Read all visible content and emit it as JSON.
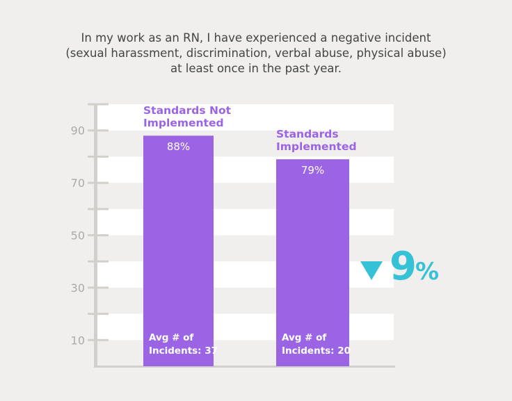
{
  "chart_data": {
    "type": "bar",
    "title_lines": [
      "In my work as an RN, I have experienced a negative incident",
      "(sexual harassment, discrimination, verbal abuse, physical abuse)",
      "at least once in the past year."
    ],
    "categories": [
      "Standards Not Implemented",
      "Standards Implemented"
    ],
    "category_label_lines": [
      [
        "Standards Not",
        "Implemented"
      ],
      [
        "Standards",
        "Implemented"
      ]
    ],
    "values": [
      88,
      79
    ],
    "value_labels": [
      "88%",
      "79%"
    ],
    "avg_incidents_lines": [
      [
        "Avg # of",
        "Incidents: 37"
      ],
      [
        "Avg # of",
        "Incidents: 20"
      ]
    ],
    "ylim": [
      0,
      100
    ],
    "yticks": [
      10,
      30,
      50,
      70,
      90
    ],
    "grid": "alternating horizontal bands",
    "annotation": {
      "icon": "triangle-down-icon",
      "value": "9",
      "unit": "%"
    },
    "colors": {
      "bar": "#9b64e4",
      "annotation": "#35c2d6",
      "band": "#ffffff",
      "background": "#f0efed",
      "axis": "#d3d0cc"
    }
  }
}
